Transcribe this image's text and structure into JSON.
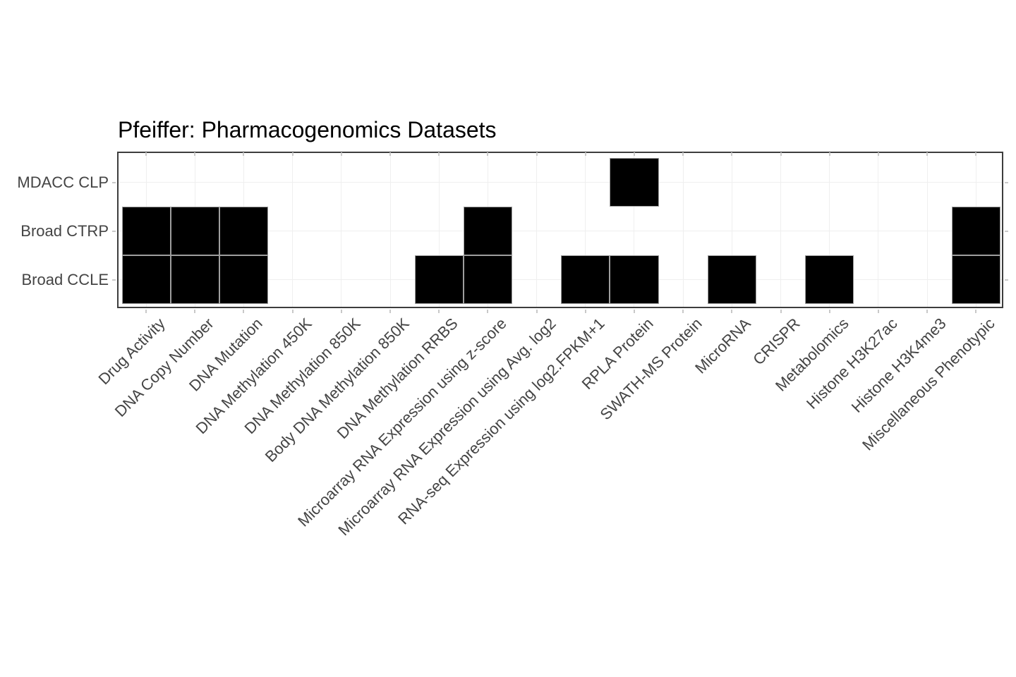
{
  "title": "Pfeiffer: Pharmacogenomics Datasets",
  "colors": {
    "tile_fill": "#000000",
    "tile_border": "#9e9e9e",
    "panel_border": "#3d3d3d",
    "axis_text": "#444444",
    "tick": "#c9c9c9",
    "gridline": "#efefef",
    "background": "#ffffff"
  },
  "chart_data": {
    "type": "heatmap",
    "title": "Pfeiffer: Pharmacogenomics Datasets",
    "x_categories": [
      "Drug Activity",
      "DNA Copy Number",
      "DNA Mutation",
      "DNA Methylation 450K",
      "DNA Methylation 850K",
      "Body DNA Methylation 850K",
      "DNA Methylation RRBS",
      "Microarray RNA Expression using z-score",
      "Microarray RNA Expression using Avg. log2",
      "RNA-seq Expression using log2.FPKM+1",
      "RPLA Protein",
      "SWATH-MS Protein",
      "MicroRNA",
      "CRISPR",
      "Metabolomics",
      "Histone H3K27ac",
      "Histone H3K4me3",
      "Miscellaneous Phenotypic"
    ],
    "y_categories": [
      "MDACC CLP",
      "Broad CTRP",
      "Broad CCLE"
    ],
    "series": [
      {
        "name": "MDACC CLP",
        "values": [
          0,
          0,
          0,
          0,
          0,
          0,
          0,
          0,
          0,
          0,
          1,
          0,
          0,
          0,
          0,
          0,
          0,
          0
        ]
      },
      {
        "name": "Broad CTRP",
        "values": [
          1,
          1,
          1,
          0,
          0,
          0,
          0,
          1,
          0,
          0,
          0,
          0,
          0,
          0,
          0,
          0,
          0,
          1
        ]
      },
      {
        "name": "Broad CCLE",
        "values": [
          1,
          1,
          1,
          0,
          0,
          0,
          1,
          1,
          0,
          1,
          1,
          0,
          1,
          0,
          1,
          0,
          0,
          1
        ]
      }
    ],
    "value_meaning": "1 = dataset available (black tile), 0 = not available (blank)",
    "legend": "none",
    "grid": "faint",
    "x_tick_angle_deg": 45
  }
}
